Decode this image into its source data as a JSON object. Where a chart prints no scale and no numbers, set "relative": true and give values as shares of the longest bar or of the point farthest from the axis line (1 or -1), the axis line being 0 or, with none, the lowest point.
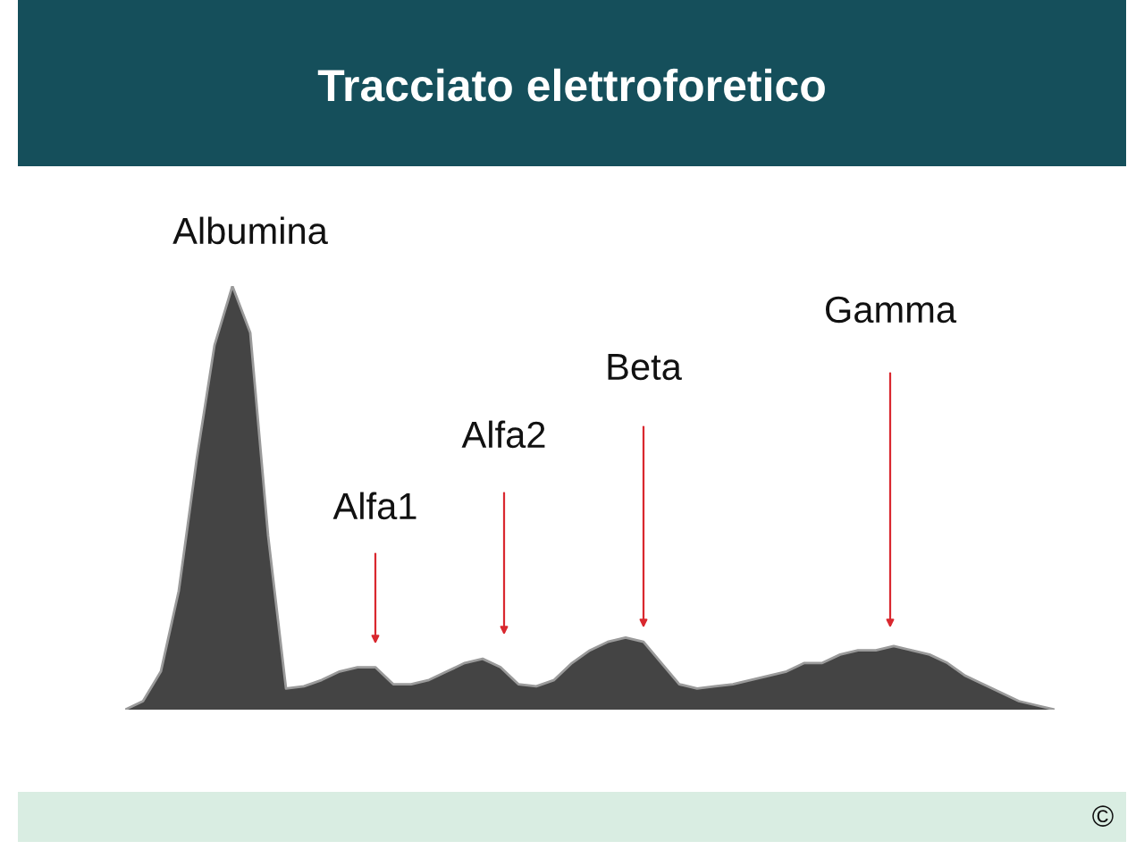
{
  "chart_data": {
    "type": "area",
    "title": "Tracciato elettroforetico",
    "relative": true,
    "categories": [
      null,
      null,
      null,
      null,
      null,
      null,
      null,
      null,
      null,
      null,
      null,
      null,
      null,
      null,
      null,
      null,
      null,
      null,
      null,
      null,
      null,
      null,
      null,
      null,
      null,
      null,
      null,
      null,
      null,
      null,
      null,
      null,
      null,
      null,
      null,
      null,
      null,
      null,
      null,
      null,
      null,
      null,
      null,
      null,
      null,
      null,
      null,
      null,
      null,
      null,
      null,
      null,
      null
    ],
    "series": [
      {
        "color": "#444444",
        "values": [
          0.0,
          0.02,
          0.09,
          0.28,
          0.59,
          0.86,
          1.0,
          0.89,
          0.41,
          0.05,
          0.055,
          0.07,
          0.09,
          0.1,
          0.1,
          0.06,
          0.06,
          0.07,
          0.09,
          0.11,
          0.12,
          0.1,
          0.06,
          0.055,
          0.07,
          0.11,
          0.14,
          0.16,
          0.17,
          0.16,
          0.11,
          0.06,
          0.05,
          0.055,
          0.06,
          0.07,
          0.08,
          0.09,
          0.11,
          0.11,
          0.13,
          0.14,
          0.14,
          0.15,
          0.14,
          0.13,
          0.11,
          0.08,
          0.06,
          0.04,
          0.02,
          0.01,
          0.0
        ]
      }
    ],
    "annotations": [
      "Albumina",
      "Alfa1",
      "Alfa2",
      "Beta",
      "Gamma",
      "©"
    ]
  }
}
